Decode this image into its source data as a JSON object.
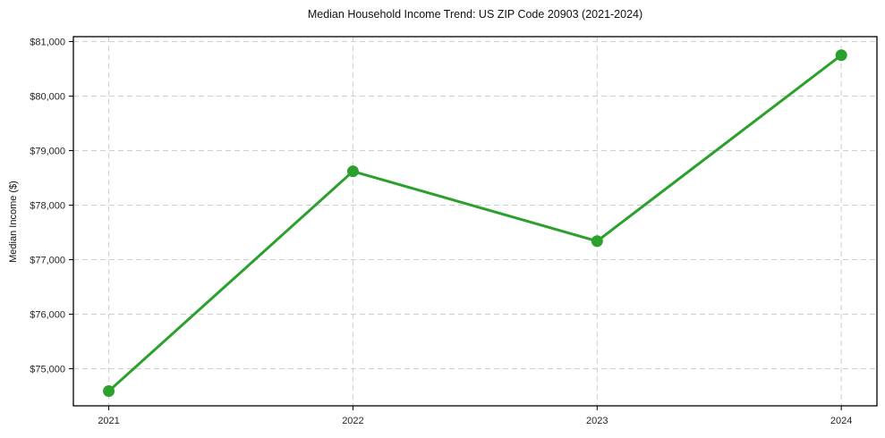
{
  "chart_data": {
    "type": "line",
    "title": "Median Household Income Trend: US ZIP Code 20903 (2021-2024)",
    "xlabel": "",
    "ylabel": "Median Income ($)",
    "x": [
      2021,
      2022,
      2023,
      2024
    ],
    "x_tick_labels": [
      "2021",
      "2022",
      "2023",
      "2024"
    ],
    "series": [
      {
        "name": "Median Household Income",
        "values": [
          74590,
          78620,
          77340,
          80750
        ]
      }
    ],
    "y_ticks": [
      75000,
      76000,
      77000,
      78000,
      79000,
      80000,
      81000
    ],
    "y_tick_labels": [
      "$75,000",
      "$76,000",
      "$77,000",
      "$78,000",
      "$79,000",
      "$80,000",
      "$81,000"
    ],
    "xlim": [
      2020.855,
      2024.146
    ],
    "ylim": [
      74320,
      81090
    ],
    "grid": true,
    "legend": "none",
    "line_color": "#2ca02c",
    "marker": "circle",
    "grid_color": "#cfcfcf",
    "spine_color": "#000000",
    "tick_label_color": "#262626"
  }
}
